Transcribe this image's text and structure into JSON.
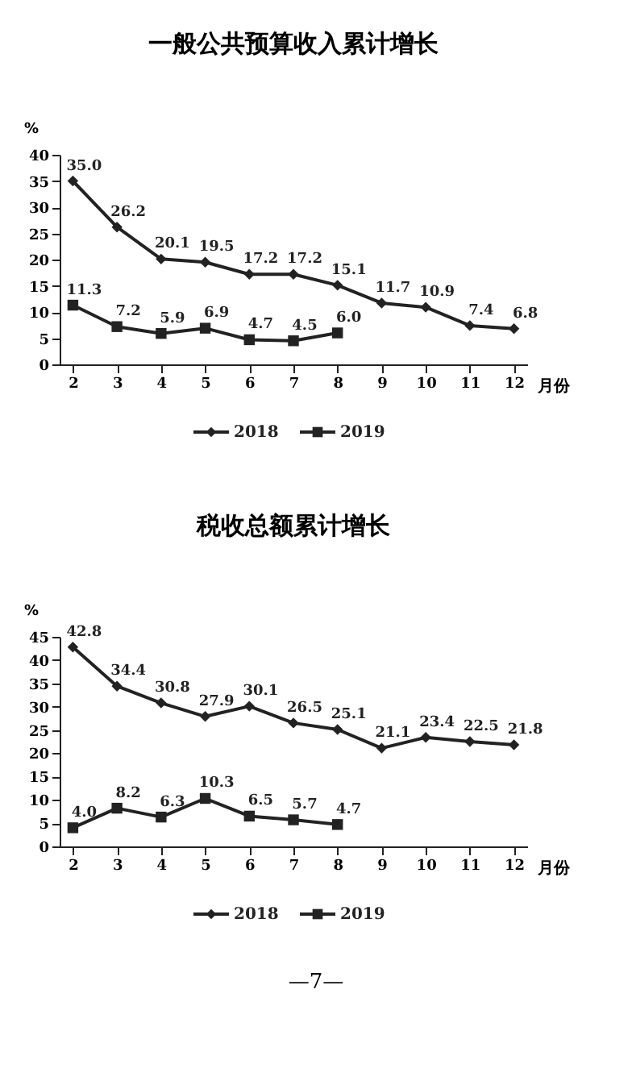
{
  "chart_data": [
    {
      "type": "line",
      "title": "一般公共预算收入累计增长",
      "ylabel": "%",
      "xlabel": "月份",
      "categories": [
        "2",
        "3",
        "4",
        "5",
        "6",
        "7",
        "8",
        "9",
        "10",
        "11",
        "12"
      ],
      "series": [
        {
          "name": "2018",
          "color": "#222222",
          "marker": "diamond",
          "values": [
            35.0,
            26.2,
            20.1,
            19.5,
            17.2,
            17.2,
            15.1,
            11.7,
            10.9,
            7.4,
            6.8
          ]
        },
        {
          "name": "2019",
          "color": "#222222",
          "marker": "square",
          "values": [
            11.3,
            7.2,
            5.9,
            6.9,
            4.7,
            4.5,
            6.0,
            null,
            null,
            null,
            null
          ]
        }
      ],
      "ylim": [
        0,
        40
      ],
      "yticks": [
        0,
        5,
        10,
        15,
        20,
        25,
        30,
        35,
        40
      ],
      "grid": false,
      "legend": "bottom",
      "value_labels": [
        [
          "35.0",
          "26.2",
          "20.1",
          "19.5",
          "17.2",
          "17.2",
          "15.1",
          "11.7",
          "10.9",
          "7.4",
          "6.8"
        ],
        [
          "11.3",
          "7.2",
          "5.9",
          "6.9",
          "4.7",
          "4.5",
          "6.0",
          null,
          null,
          null,
          null
        ]
      ]
    },
    {
      "type": "line",
      "title": "税收总额累计增长",
      "ylabel": "%",
      "xlabel": "月份",
      "categories": [
        "2",
        "3",
        "4",
        "5",
        "6",
        "7",
        "8",
        "9",
        "10",
        "11",
        "12"
      ],
      "series": [
        {
          "name": "2018",
          "color": "#222222",
          "marker": "diamond",
          "values": [
            42.8,
            34.4,
            30.8,
            27.9,
            30.1,
            26.5,
            25.1,
            21.1,
            23.4,
            22.5,
            21.8
          ]
        },
        {
          "name": "2019",
          "color": "#222222",
          "marker": "square",
          "values": [
            4.0,
            8.2,
            6.3,
            10.3,
            6.5,
            5.7,
            4.7,
            null,
            null,
            null,
            null
          ]
        }
      ],
      "ylim": [
        0,
        45
      ],
      "yticks": [
        0,
        5,
        10,
        15,
        20,
        25,
        30,
        35,
        40,
        45
      ],
      "grid": false,
      "legend": "bottom",
      "value_labels": [
        [
          "42.8",
          "34.4",
          "30.8",
          "27.9",
          "30.1",
          "26.5",
          "25.1",
          "21.1",
          "23.4",
          "22.5",
          "21.8"
        ],
        [
          "4.0",
          "8.2",
          "6.3",
          "10.3",
          "6.5",
          "5.7",
          "4.7",
          null,
          null,
          null,
          null
        ]
      ],
      "annotations": [
        "—7—"
      ]
    }
  ]
}
